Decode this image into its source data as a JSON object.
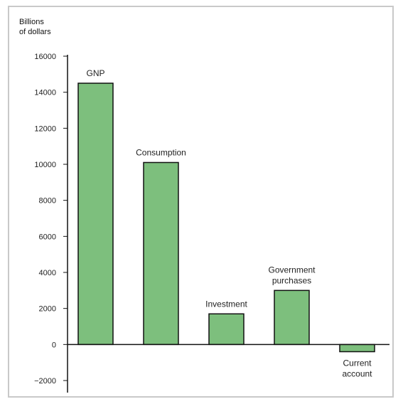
{
  "chart_data": {
    "type": "bar",
    "ylabel_lines": [
      "Billions",
      "of dollars"
    ],
    "categories": [
      "GNP",
      "Consumption",
      "Investment",
      "Government purchases",
      "Current account"
    ],
    "category_label_lines": [
      [
        "GNP"
      ],
      [
        "Consumption"
      ],
      [
        "Investment"
      ],
      [
        "Government",
        "purchases"
      ],
      [
        "Current",
        "account"
      ]
    ],
    "values": [
      14500,
      10100,
      1700,
      3000,
      -400
    ],
    "ylim": [
      -2000,
      16000
    ],
    "yticks": [
      16000,
      14000,
      12000,
      10000,
      8000,
      6000,
      4000,
      2000,
      0,
      -2000
    ],
    "ytick_labels": [
      "16000",
      "14000",
      "12000",
      "10000",
      "8000",
      "6000",
      "4000",
      "2000",
      "0",
      "−2000"
    ],
    "grid": false,
    "bar_color": "#7dbf7d",
    "bar_edge_color": "#111111"
  }
}
